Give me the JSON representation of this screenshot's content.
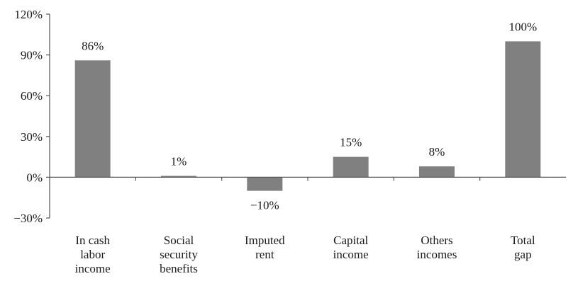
{
  "chart_data": {
    "type": "bar",
    "categories": [
      [
        "In cash",
        "labor",
        "income"
      ],
      [
        "Social",
        "security",
        "benefits"
      ],
      [
        "Imputed",
        "rent"
      ],
      [
        "Capital",
        "income"
      ],
      [
        "Others",
        "incomes"
      ],
      [
        "Total",
        "gap"
      ]
    ],
    "values": [
      86,
      1,
      -10,
      15,
      8,
      100
    ],
    "data_labels": [
      "86%",
      "1%",
      "−10%",
      "15%",
      "8%",
      "100%"
    ],
    "yticks": [
      {
        "value": 120,
        "label": "120%"
      },
      {
        "value": 90,
        "label": "90%"
      },
      {
        "value": 60,
        "label": "60%"
      },
      {
        "value": 30,
        "label": "30%"
      },
      {
        "value": 0,
        "label": "0%"
      },
      {
        "value": -30,
        "label": "−30%"
      }
    ],
    "ylim": [
      -30,
      120
    ],
    "grid": false,
    "bar_color": "#808080",
    "axis_color": "#555555"
  }
}
